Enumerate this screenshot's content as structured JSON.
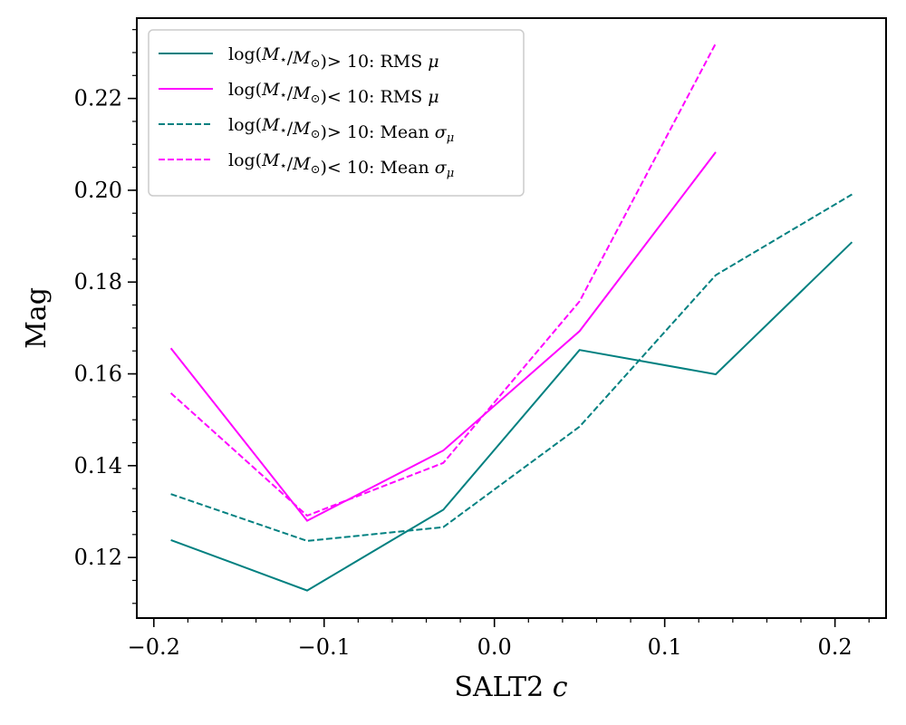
{
  "chart_data": {
    "type": "line",
    "xlabel": "SALT2 c",
    "ylabel": "Mag",
    "xlim": [
      -0.21,
      0.23
    ],
    "ylim": [
      0.1068,
      0.2375
    ],
    "x_ticks": [
      -0.2,
      -0.1,
      0.0,
      0.1,
      0.2
    ],
    "x_tick_labels": [
      "−0.2",
      "−0.1",
      "0.0",
      "0.1",
      "0.2"
    ],
    "y_ticks": [
      0.12,
      0.14,
      0.16,
      0.18,
      0.2,
      0.22
    ],
    "y_tick_labels": [
      "0.12",
      "0.14",
      "0.16",
      "0.18",
      "0.20",
      "0.22"
    ],
    "legend_position": "upper-left",
    "series": [
      {
        "name": "log(M⋆/M⊙)> 10: RMS μ",
        "color": "#008080",
        "dash": "solid",
        "x": [
          -0.19,
          -0.11,
          -0.03,
          0.05,
          0.13,
          0.21
        ],
        "y": [
          0.1238,
          0.1128,
          0.1304,
          0.1652,
          0.1599,
          0.1887
        ]
      },
      {
        "name": "log(M⋆/M⊙)< 10: RMS μ",
        "color": "#ff00ff",
        "dash": "solid",
        "x": [
          -0.19,
          -0.11,
          -0.03,
          0.05,
          0.13
        ],
        "y": [
          0.1656,
          0.128,
          0.1433,
          0.1693,
          0.2083
        ]
      },
      {
        "name": "log(M⋆/M⊙)> 10: Mean σμ",
        "color": "#008080",
        "dash": "dashed",
        "x": [
          -0.19,
          -0.11,
          -0.03,
          0.05,
          0.13,
          0.21
        ],
        "y": [
          0.1338,
          0.1236,
          0.1266,
          0.1485,
          0.1815,
          0.1991
        ]
      },
      {
        "name": "log(M⋆/M⊙)< 10: Mean σμ",
        "color": "#ff00ff",
        "dash": "dashed",
        "x": [
          -0.19,
          -0.11,
          -0.03,
          0.05,
          0.13
        ],
        "y": [
          0.1558,
          0.1291,
          0.1406,
          0.1758,
          0.232
        ]
      }
    ]
  }
}
